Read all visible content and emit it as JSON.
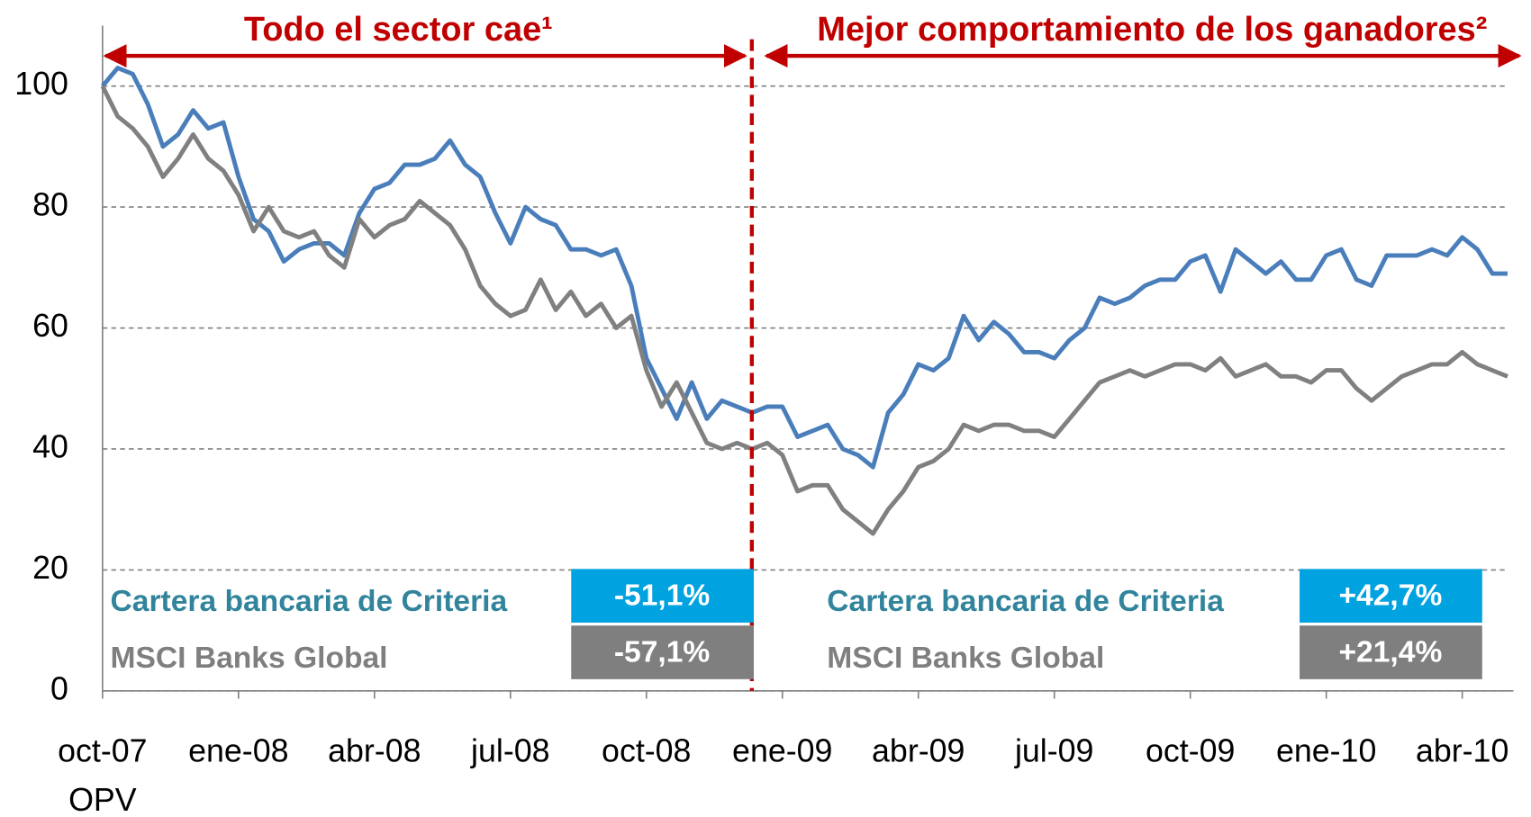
{
  "chart_data": {
    "type": "line",
    "annotations": {
      "left_title": "Todo el sector cae¹",
      "right_title": "Mejor comportamiento de los ganadores²",
      "start_note": "OPV"
    },
    "categories": [
      "oct-07",
      null,
      null,
      null,
      null,
      null,
      null,
      null,
      null,
      "ene-08",
      null,
      null,
      null,
      null,
      null,
      null,
      null,
      null,
      "abr-08",
      null,
      null,
      null,
      null,
      null,
      null,
      null,
      null,
      "jul-08",
      null,
      null,
      null,
      null,
      null,
      null,
      null,
      null,
      "oct-08",
      null,
      null,
      null,
      null,
      null,
      null,
      null,
      null,
      "ene-09",
      null,
      null,
      null,
      null,
      null,
      null,
      null,
      null,
      "abr-09",
      null,
      null,
      null,
      null,
      null,
      null,
      null,
      null,
      "jul-09",
      null,
      null,
      null,
      null,
      null,
      null,
      null,
      null,
      "oct-09",
      null,
      null,
      null,
      null,
      null,
      null,
      null,
      null,
      "ene-10",
      null,
      null,
      null,
      null,
      null,
      null,
      null,
      null,
      "abr-10",
      null,
      null,
      null
    ],
    "series": [
      {
        "name": "Cartera bancaria de Criteria",
        "color": "#4a7ebb",
        "values": [
          100,
          103,
          102,
          97,
          90,
          92,
          96,
          93,
          94,
          85,
          78,
          76,
          71,
          73,
          74,
          74,
          72,
          79,
          83,
          84,
          87,
          87,
          88,
          91,
          87,
          85,
          79,
          74,
          80,
          78,
          77,
          73,
          73,
          72,
          73,
          67,
          55,
          50,
          45,
          51,
          45,
          48,
          47,
          46,
          47,
          47,
          42,
          43,
          44,
          40,
          39,
          37,
          46,
          49,
          54,
          53,
          55,
          62,
          58,
          61,
          59,
          56,
          56,
          55,
          58,
          60,
          65,
          64,
          65,
          67,
          68,
          68,
          71,
          72,
          66,
          73,
          71,
          69,
          71,
          68,
          68,
          72,
          73,
          68,
          67,
          72,
          72,
          72,
          73,
          72,
          75,
          73,
          69,
          69
        ]
      },
      {
        "name": "MSCI Banks Global",
        "color": "#808080",
        "values": [
          100,
          95,
          93,
          90,
          85,
          88,
          92,
          88,
          86,
          82,
          76,
          80,
          76,
          75,
          76,
          72,
          70,
          78,
          75,
          77,
          78,
          81,
          79,
          77,
          73,
          67,
          64,
          62,
          63,
          68,
          63,
          66,
          62,
          64,
          60,
          62,
          53,
          47,
          51,
          46,
          41,
          40,
          41,
          40,
          41,
          39,
          33,
          34,
          34,
          30,
          28,
          26,
          30,
          33,
          37,
          38,
          40,
          44,
          43,
          44,
          44,
          43,
          43,
          42,
          45,
          48,
          51,
          52,
          53,
          52,
          53,
          54,
          54,
          53,
          55,
          52,
          53,
          54,
          52,
          52,
          51,
          53,
          53,
          50,
          48,
          50,
          52,
          53,
          54,
          54,
          56,
          54,
          53,
          52
        ]
      }
    ],
    "panels": [
      {
        "rows": [
          {
            "value": -51.1,
            "label": "-51,1%",
            "box_color": "#00a2e0"
          },
          {
            "value": -57.1,
            "label": "-57,1%",
            "box_color": "#7f7f7f"
          }
        ]
      },
      {
        "rows": [
          {
            "value": 42.7,
            "label": "+42,7%",
            "box_color": "#00a2e0"
          },
          {
            "value": 21.4,
            "label": "+21,4%",
            "box_color": "#7f7f7f"
          }
        ]
      }
    ],
    "legend_colors": [
      "#31849b",
      "#7f7f7f"
    ],
    "annotation_color": "#c00000",
    "ylim": [
      0,
      110
    ],
    "yticks": [
      0,
      20,
      40,
      60,
      80,
      100
    ],
    "grid": true
  }
}
